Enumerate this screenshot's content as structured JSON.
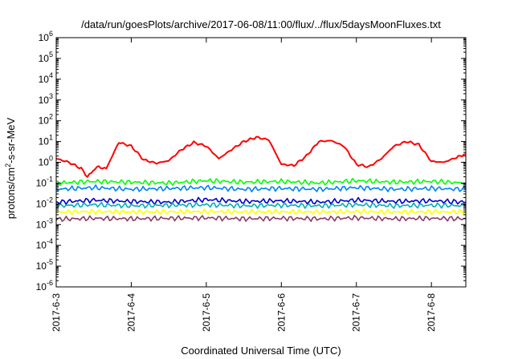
{
  "chart_data": {
    "type": "line",
    "title": "/data/run/goesPlots/archive/2017-06-08/11:00/flux/../flux/5daysMoonFluxes.txt",
    "xlabel": "Coordinated Universal Time (UTC)",
    "ylabel": "protons/cm2-s-sr-MeV",
    "ylabel_base": "protons/cm",
    "ylabel_sup": "2",
    "ylabel_rest": "-s-sr-MeV",
    "y_scale": "log",
    "ylim": [
      1e-06,
      1000000.0
    ],
    "y_ticks": [
      {
        "base": "10",
        "exp": "-6",
        "value": -6
      },
      {
        "base": "10",
        "exp": "-5",
        "value": -5
      },
      {
        "base": "10",
        "exp": "-4",
        "value": -4
      },
      {
        "base": "10",
        "exp": "-3",
        "value": -3
      },
      {
        "base": "10",
        "exp": "-2",
        "value": -2
      },
      {
        "base": "10",
        "exp": "-1",
        "value": -1
      },
      {
        "base": "10",
        "exp": "0",
        "value": 0
      },
      {
        "base": "10",
        "exp": "1",
        "value": 1
      },
      {
        "base": "10",
        "exp": "2",
        "value": 2
      },
      {
        "base": "10",
        "exp": "3",
        "value": 3
      },
      {
        "base": "10",
        "exp": "4",
        "value": 4
      },
      {
        "base": "10",
        "exp": "5",
        "value": 5
      },
      {
        "base": "10",
        "exp": "6",
        "value": 6
      }
    ],
    "xlim": [
      "2017-06-03T00:00",
      "2017-06-08T11:00"
    ],
    "x_ticks": [
      {
        "label": "2017-6-3",
        "date": "2017-06-03"
      },
      {
        "label": "2017-6-4",
        "date": "2017-06-04"
      },
      {
        "label": "2017-6-5",
        "date": "2017-06-05"
      },
      {
        "label": "2017-6-6",
        "date": "2017-06-06"
      },
      {
        "label": "2017-6-7",
        "date": "2017-06-07"
      },
      {
        "label": "2017-6-8",
        "date": "2017-06-08"
      }
    ],
    "grid": false,
    "legend": "none",
    "series": [
      {
        "color": "#ff0000",
        "x": [
          "2017-06-03T00:00",
          "2017-06-03T04:00",
          "2017-06-03T08:00",
          "2017-06-03T10:00",
          "2017-06-03T13:00",
          "2017-06-03T16:00",
          "2017-06-03T20:00",
          "2017-06-04T00:00",
          "2017-06-04T04:00",
          "2017-06-04T08:00",
          "2017-06-04T12:00",
          "2017-06-04T16:00",
          "2017-06-04T20:00",
          "2017-06-05T00:00",
          "2017-06-05T04:00",
          "2017-06-05T08:00",
          "2017-06-05T12:00",
          "2017-06-05T16:00",
          "2017-06-05T20:00",
          "2017-06-06T00:00",
          "2017-06-06T04:00",
          "2017-06-06T08:00",
          "2017-06-06T12:00",
          "2017-06-06T16:00",
          "2017-06-06T20:00",
          "2017-06-07T00:00",
          "2017-06-07T04:00",
          "2017-06-07T08:00",
          "2017-06-07T12:00",
          "2017-06-07T16:00",
          "2017-06-07T20:00",
          "2017-06-08T00:00",
          "2017-06-08T04:00",
          "2017-06-08T08:00",
          "2017-06-08T11:00"
        ],
        "values": [
          1.5,
          1.0,
          0.5,
          0.2,
          0.6,
          0.5,
          9,
          6,
          1.3,
          0.9,
          1.2,
          4,
          9,
          6,
          1.5,
          4,
          10,
          16,
          12,
          0.8,
          0.7,
          2.0,
          10,
          11,
          6,
          0.8,
          0.6,
          1.5,
          6,
          10,
          7,
          1.1,
          1.0,
          1.7,
          2.5
        ]
      },
      {
        "color": "#00ff00",
        "x": [
          "2017-06-03T00:00",
          "2017-06-03T12:00",
          "2017-06-04T00:00",
          "2017-06-04T12:00",
          "2017-06-05T00:00",
          "2017-06-05T12:00",
          "2017-06-06T00:00",
          "2017-06-06T12:00",
          "2017-06-07T00:00",
          "2017-06-07T12:00",
          "2017-06-08T00:00",
          "2017-06-08T11:00"
        ],
        "values": [
          0.1,
          0.12,
          0.11,
          0.1,
          0.13,
          0.11,
          0.12,
          0.1,
          0.13,
          0.11,
          0.12,
          0.1
        ]
      },
      {
        "color": "#0080ff",
        "x": [
          "2017-06-03T00:00",
          "2017-06-03T12:00",
          "2017-06-04T00:00",
          "2017-06-04T12:00",
          "2017-06-05T00:00",
          "2017-06-05T12:00",
          "2017-06-06T00:00",
          "2017-06-06T12:00",
          "2017-06-07T00:00",
          "2017-06-07T12:00",
          "2017-06-08T00:00",
          "2017-06-08T11:00"
        ],
        "values": [
          0.05,
          0.06,
          0.05,
          0.055,
          0.06,
          0.05,
          0.055,
          0.05,
          0.06,
          0.05,
          0.055,
          0.05
        ]
      },
      {
        "color": "#0000cc",
        "x": [
          "2017-06-03T00:00",
          "2017-06-03T12:00",
          "2017-06-04T00:00",
          "2017-06-04T12:00",
          "2017-06-05T00:00",
          "2017-06-05T12:00",
          "2017-06-06T00:00",
          "2017-06-06T12:00",
          "2017-06-07T00:00",
          "2017-06-07T12:00",
          "2017-06-08T00:00",
          "2017-06-08T11:00"
        ],
        "values": [
          0.012,
          0.015,
          0.013,
          0.012,
          0.016,
          0.013,
          0.014,
          0.012,
          0.015,
          0.013,
          0.014,
          0.012
        ]
      },
      {
        "color": "#00b0b0",
        "x": [
          "2017-06-03T00:00",
          "2017-06-03T12:00",
          "2017-06-04T00:00",
          "2017-06-04T12:00",
          "2017-06-05T00:00",
          "2017-06-05T12:00",
          "2017-06-06T00:00",
          "2017-06-06T12:00",
          "2017-06-07T00:00",
          "2017-06-07T12:00",
          "2017-06-08T00:00",
          "2017-06-08T11:00"
        ],
        "values": [
          0.008,
          0.009,
          0.008,
          0.0085,
          0.009,
          0.008,
          0.0085,
          0.008,
          0.009,
          0.008,
          0.0085,
          0.008
        ]
      },
      {
        "color": "#ffff00",
        "x": [
          "2017-06-03T00:00",
          "2017-06-03T12:00",
          "2017-06-04T00:00",
          "2017-06-04T12:00",
          "2017-06-05T00:00",
          "2017-06-05T12:00",
          "2017-06-06T00:00",
          "2017-06-06T12:00",
          "2017-06-07T00:00",
          "2017-06-07T12:00",
          "2017-06-08T00:00",
          "2017-06-08T11:00"
        ],
        "values": [
          0.004,
          0.0042,
          0.004,
          0.0041,
          0.0042,
          0.004,
          0.0041,
          0.004,
          0.0042,
          0.004,
          0.0041,
          0.004
        ]
      },
      {
        "color": "#8b3a62",
        "x": [
          "2017-06-03T00:00",
          "2017-06-03T12:00",
          "2017-06-04T00:00",
          "2017-06-04T12:00",
          "2017-06-05T00:00",
          "2017-06-05T12:00",
          "2017-06-06T00:00",
          "2017-06-06T12:00",
          "2017-06-07T00:00",
          "2017-06-07T12:00",
          "2017-06-08T00:00",
          "2017-06-08T11:00"
        ],
        "values": [
          0.0018,
          0.002,
          0.0019,
          0.002,
          0.0021,
          0.0019,
          0.002,
          0.0019,
          0.0021,
          0.0019,
          0.002,
          0.0019
        ]
      }
    ]
  }
}
